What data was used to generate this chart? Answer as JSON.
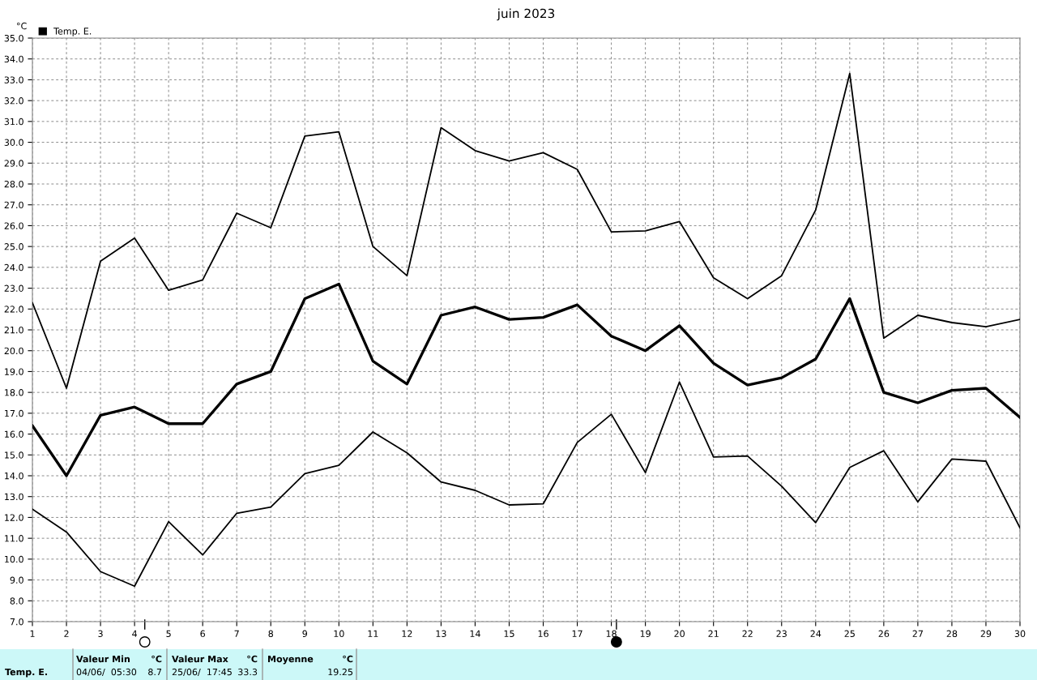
{
  "chart_data": {
    "type": "line",
    "title": "juin 2023",
    "ylabel": "°C",
    "legend": "top left",
    "grid": true,
    "marker": "none",
    "line_style": "solid",
    "x": [
      1,
      2,
      3,
      4,
      5,
      6,
      7,
      8,
      9,
      10,
      11,
      12,
      13,
      14,
      15,
      16,
      17,
      18,
      19,
      20,
      21,
      22,
      23,
      24,
      25,
      26,
      27,
      28,
      29,
      30
    ],
    "series": [
      {
        "color": "#000000",
        "values": [
          22.3,
          18.2,
          24.3,
          25.4,
          22.9,
          23.4,
          26.6,
          25.9,
          30.3,
          30.5,
          25.0,
          23.6,
          30.7,
          29.6,
          29.1,
          29.5,
          28.7,
          25.7,
          25.75,
          26.2,
          23.5,
          22.5,
          23.6,
          26.75,
          33.3,
          20.6,
          21.7,
          21.35,
          21.15,
          21.5
        ]
      },
      {
        "name": "Temp. E.",
        "color": "#000000",
        "values": [
          16.4,
          14.0,
          16.9,
          17.3,
          16.5,
          16.5,
          18.4,
          19.0,
          22.5,
          23.2,
          19.5,
          18.4,
          21.7,
          22.1,
          21.5,
          21.6,
          22.2,
          20.7,
          20.0,
          21.2,
          19.4,
          18.35,
          18.7,
          19.6,
          22.5,
          18.0,
          17.5,
          18.1,
          18.2,
          16.8
        ]
      },
      {
        "color": "#000000",
        "values": [
          12.4,
          11.3,
          9.4,
          8.7,
          11.8,
          10.2,
          12.2,
          12.5,
          14.1,
          14.5,
          16.1,
          15.1,
          13.7,
          13.3,
          12.6,
          12.65,
          15.6,
          16.95,
          14.15,
          18.5,
          14.9,
          14.95,
          13.5,
          11.75,
          14.4,
          15.2,
          12.75,
          14.8,
          14.7,
          11.5
        ]
      }
    ],
    "xlim": [
      1,
      30
    ],
    "ylim": [
      7,
      35
    ],
    "xticks": [
      1,
      2,
      3,
      4,
      5,
      6,
      7,
      8,
      9,
      10,
      11,
      12,
      13,
      14,
      15,
      16,
      17,
      18,
      19,
      20,
      21,
      22,
      23,
      24,
      25,
      26,
      27,
      28,
      29,
      30
    ],
    "yticks": [
      {
        "value": 7,
        "label": "7.0"
      },
      {
        "value": 8,
        "label": "8.0"
      },
      {
        "value": 9,
        "label": "9.0"
      },
      {
        "value": 10,
        "label": "10.0"
      },
      {
        "value": 11,
        "label": "11.0"
      },
      {
        "value": 12,
        "label": "12.0"
      },
      {
        "value": 13,
        "label": "13.0"
      },
      {
        "value": 14,
        "label": "14.0"
      },
      {
        "value": 15,
        "label": "15.0"
      },
      {
        "value": 16,
        "label": "16.0"
      },
      {
        "value": 17,
        "label": "17.0"
      },
      {
        "value": 18,
        "label": "18.0"
      },
      {
        "value": 19,
        "label": "19.0"
      },
      {
        "value": 20,
        "label": "20.0"
      },
      {
        "value": 21,
        "label": "21.0"
      },
      {
        "value": 22,
        "label": "22.0"
      },
      {
        "value": 23,
        "label": "23.0"
      },
      {
        "value": 24,
        "label": "24.0"
      },
      {
        "value": 25,
        "label": "25.0"
      },
      {
        "value": 26,
        "label": "26.0"
      },
      {
        "value": 27,
        "label": "27.0"
      },
      {
        "value": 28,
        "label": "28.0"
      },
      {
        "value": 29,
        "label": "29.0"
      },
      {
        "value": 30,
        "label": "30.0"
      },
      {
        "value": 31,
        "label": "31.0"
      },
      {
        "value": 32,
        "label": "32.0"
      },
      {
        "value": 33,
        "label": "33.0"
      },
      {
        "value": 34,
        "label": "34.0"
      },
      {
        "value": 35,
        "label": "35.0"
      }
    ],
    "annotations": [
      "Temp. E.",
      "Valeur Min",
      "°C",
      "04/06/  05:30",
      "8.7",
      "Valeur Max",
      "°C",
      "25/06/  17:45",
      "33.3",
      "Moyenne",
      "°C",
      "19.25"
    ]
  }
}
